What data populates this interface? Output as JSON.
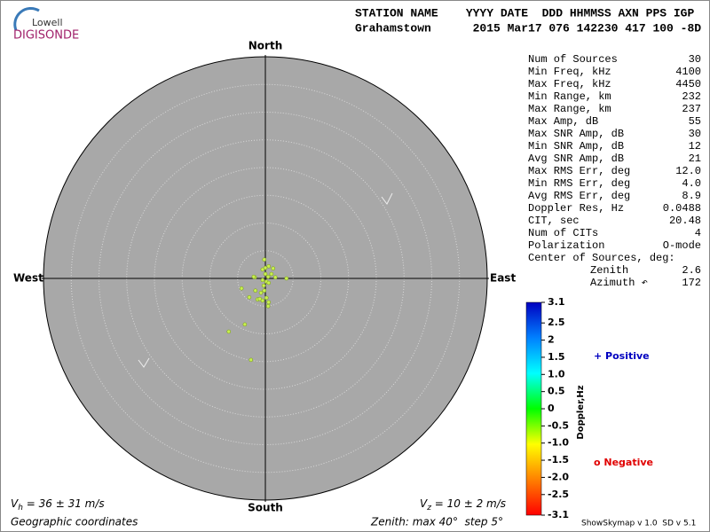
{
  "logo": {
    "top": "Lowell",
    "bottom": "DIGISONDE"
  },
  "header": {
    "line1": "STATION NAME    YYYY DATE  DDD HHMMSS AXN PPS IGP",
    "line2": "Grahamstown      2015 Mar17 076 142230 417 100 -8D"
  },
  "chart_data": [
    {
      "type": "skymap",
      "directions": {
        "north": "North",
        "south": "South",
        "west": "West",
        "east": "East"
      },
      "xlim": [
        -40,
        40
      ],
      "ylim": [
        -40,
        40
      ],
      "rticks": [
        5,
        10,
        15,
        20,
        25,
        30,
        35,
        40
      ],
      "color": "#c8f050",
      "x": [
        0,
        0.6,
        1.4,
        -0.5,
        0,
        0.5,
        1.1,
        1.8,
        3.8,
        -1.9,
        -0.5,
        0.2,
        0.6,
        -0.3,
        -4.3,
        -1.8,
        -0.8,
        -0.2,
        -2.9,
        -1.4,
        -0.5,
        0.2,
        0.6,
        0.5,
        -1.0,
        -3.7,
        -6.6,
        -2.6,
        -2.1,
        -0.2
      ],
      "y": [
        1.9,
        2.2,
        1.8,
        1.6,
        0.8,
        0.3,
        0.8,
        0.2,
        0,
        0.2,
        -0.3,
        -0.6,
        -0.8,
        -1.3,
        -1.8,
        -2.2,
        -2.6,
        -2.2,
        -3.4,
        -3.8,
        -4.0,
        -3.5,
        -4.3,
        -5.0,
        -3.7,
        -8.3,
        -9.6,
        -14.7,
        0.3,
        3.4
      ]
    },
    {
      "type": "colorbar",
      "label": "Doppler,Hz",
      "ylim": [
        -3.1,
        3.1
      ],
      "colors": [
        "#ff0000",
        "#ff8000",
        "#ffff00",
        "#00ff00",
        "#00ffff",
        "#0080ff",
        "#0000c0"
      ],
      "yticks": [
        3.1,
        2.5,
        2,
        1.5,
        {
          "value": 1,
          "label": "1.0"
        },
        0.5,
        0,
        -0.5,
        {
          "value": -1,
          "label": "-1.0"
        },
        -1.5,
        {
          "value": -2,
          "label": "-2.0"
        },
        -2.5,
        -3.1
      ]
    }
  ],
  "stats": [
    {
      "label": "Num of Sources",
      "value": "30"
    },
    {
      "label": "Min Freq, kHz",
      "value": "4100"
    },
    {
      "label": "Max Freq, kHz",
      "value": "4450"
    },
    {
      "label": "Min Range, km",
      "value": "232"
    },
    {
      "label": "Max Range, km",
      "value": "237"
    },
    {
      "label": "Max Amp, dB",
      "value": "55"
    },
    {
      "label": "Max SNR Amp, dB",
      "value": "30"
    },
    {
      "label": "Min SNR Amp, dB",
      "value": "12"
    },
    {
      "label": "Avg SNR Amp, dB",
      "value": "21"
    },
    {
      "label": "Max RMS Err, deg",
      "value": "12.0"
    },
    {
      "label": "Min RMS Err, deg",
      "value": "4.0"
    },
    {
      "label": "Avg RMS Err, deg",
      "value": "8.9"
    },
    {
      "label": "Doppler Res, Hz",
      "value": "0.0488"
    },
    {
      "label": "CIT, sec",
      "value": "20.48"
    },
    {
      "label": "Num of CITs",
      "value": "4"
    },
    {
      "label": "Polarization",
      "value": "O-mode"
    },
    {
      "label": "Center of Sources, deg:"
    },
    {
      "label": "Zenith",
      "value": "2.6"
    },
    {
      "label": "Azimuth ↶",
      "value": "172"
    }
  ],
  "legend": {
    "positive": {
      "text": "+ Positive",
      "color": "#0000c0"
    },
    "negative": {
      "text": "o Negative",
      "color": "#e00000"
    }
  },
  "footer": {
    "vh": {
      "symbol": "V",
      "sub": "h",
      "text": " = 36 ± 31 m/s"
    },
    "vz": {
      "symbol": "V",
      "sub": "z",
      "text": " = 10 ± 2 m/s"
    },
    "coords": "Geographic coordinates",
    "zenith": "Zenith: max 40°  step 5°",
    "version": "ShowSkymap v 1.0  SD v 5.1"
  }
}
